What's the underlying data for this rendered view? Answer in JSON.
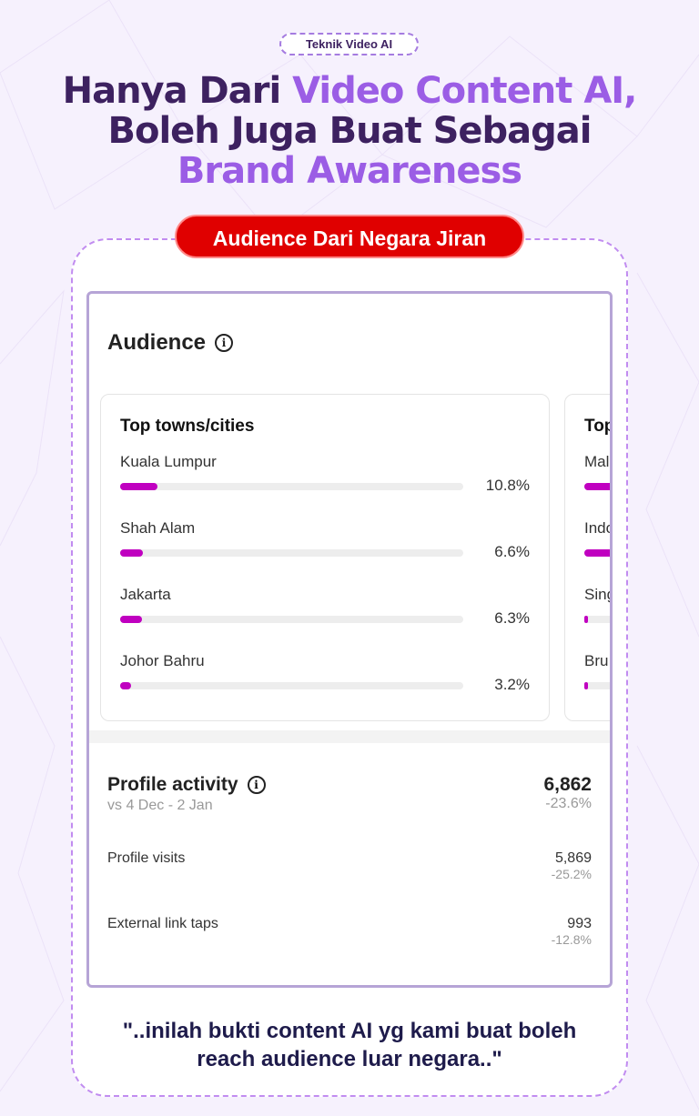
{
  "tag": "Teknik Video AI",
  "headline": {
    "line1_dark": "Hanya Dari ",
    "line1_purple": "Video Content AI,",
    "line2": "Boleh Juga Buat Sebagai",
    "line3": "Brand Awareness"
  },
  "badge": "Audience Dari Negara Jiran",
  "audience": {
    "title": "Audience",
    "info_icon": "i",
    "cities": {
      "title": "Top towns/cities",
      "items": [
        {
          "name": "Kuala Lumpur",
          "pct": "10.8%",
          "value": 10.8
        },
        {
          "name": "Shah Alam",
          "pct": "6.6%",
          "value": 6.6
        },
        {
          "name": "Jakarta",
          "pct": "6.3%",
          "value": 6.3
        },
        {
          "name": "Johor Bahru",
          "pct": "3.2%",
          "value": 3.2
        }
      ]
    },
    "countries": {
      "title": "Top",
      "items": [
        {
          "name": "Mal"
        },
        {
          "name": "Indo"
        },
        {
          "name": "Sing"
        },
        {
          "name": "Bru"
        }
      ]
    }
  },
  "profile_activity": {
    "title": "Profile activity",
    "info_icon": "i",
    "compare": "vs 4 Dec - 2 Jan",
    "total": "6,862",
    "total_change": "-23.6%",
    "rows": [
      {
        "label": "Profile visits",
        "value": "5,869",
        "change": "-25.2%"
      },
      {
        "label": "External link taps",
        "value": "993",
        "change": "-12.8%"
      }
    ]
  },
  "quote": {
    "line1": "\"..inilah bukti content AI yg kami buat boleh",
    "line2": "reach audience luar negara..\""
  },
  "colors": {
    "dark": "#3d2160",
    "purple": "#9b5de5",
    "red": "#e00000",
    "bar": "#c000c0"
  }
}
